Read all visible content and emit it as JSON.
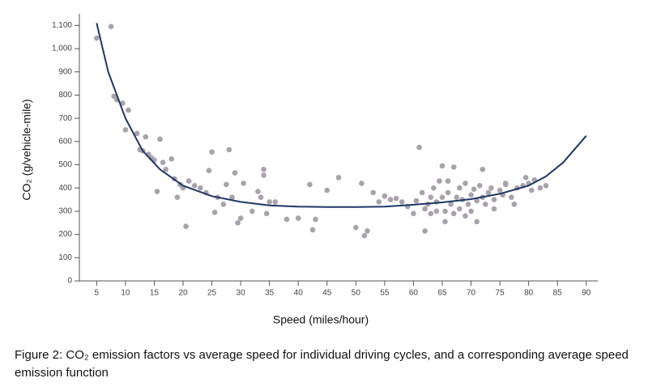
{
  "chart_data": {
    "type": "scatter",
    "y_label": "CO₂ (g/vehicle-mile)",
    "x_label": "Speed (miles/hour)",
    "caption": "Figure 2: CO₂ emission factors vs average speed for individual driving cycles, and a corresponding average speed emission function",
    "xlim": [
      2,
      92
    ],
    "ylim": [
      0,
      1150
    ],
    "xticks": [
      5,
      10,
      15,
      20,
      25,
      30,
      35,
      40,
      45,
      50,
      55,
      60,
      65,
      70,
      75,
      80,
      85,
      90
    ],
    "yticks": [
      0,
      100,
      200,
      300,
      400,
      500,
      600,
      700,
      800,
      900,
      {
        "value": 1000,
        "label": "1,000"
      },
      {
        "value": 1100,
        "label": "1,100"
      }
    ],
    "series": [
      {
        "type": "scatter",
        "color": "#a9a1ac",
        "x": [
          5,
          7.5,
          8,
          8.5,
          9.5,
          10,
          10.5,
          12,
          12.5,
          13,
          13.5,
          14,
          14.5,
          15,
          16,
          15.5,
          16.5,
          17,
          18,
          18.5,
          19,
          19.5,
          20,
          20.5,
          21,
          22,
          23,
          24,
          24.5,
          25,
          25.5,
          26,
          27,
          27.5,
          28,
          28.5,
          29,
          29.5,
          30,
          30.5,
          32,
          33,
          33.5,
          34,
          34,
          34.5,
          35,
          36,
          38,
          40,
          42,
          42.5,
          43,
          45,
          47,
          50,
          51,
          51.5,
          52,
          53,
          54,
          55,
          56,
          57,
          58,
          59,
          60,
          60.5,
          61,
          61.5,
          62,
          62,
          62.5,
          63,
          63,
          63.5,
          64,
          64,
          64.5,
          65,
          65,
          65.5,
          65.5,
          66,
          66,
          66.5,
          67,
          67,
          67.5,
          68,
          68,
          68.5,
          69,
          69,
          69.5,
          70,
          70,
          70.5,
          71,
          71,
          71.5,
          72,
          72,
          72.5,
          73,
          73.5,
          74,
          74,
          75,
          75.5,
          76,
          76,
          77,
          77.5,
          78,
          79,
          79.5,
          80,
          80.5,
          81,
          82,
          83
        ],
        "values": [
          1045,
          1095,
          795,
          780,
          765,
          650,
          735,
          635,
          565,
          560,
          620,
          545,
          530,
          520,
          610,
          385,
          510,
          480,
          525,
          440,
          360,
          415,
          400,
          235,
          430,
          410,
          400,
          380,
          475,
          555,
          295,
          360,
          330,
          415,
          565,
          360,
          465,
          250,
          270,
          420,
          300,
          385,
          360,
          480,
          455,
          290,
          340,
          340,
          265,
          270,
          415,
          220,
          265,
          390,
          445,
          230,
          420,
          195,
          215,
          380,
          340,
          365,
          350,
          355,
          340,
          320,
          290,
          345,
          575,
          380,
          215,
          310,
          330,
          360,
          290,
          400,
          300,
          340,
          430,
          495,
          360,
          255,
          300,
          380,
          430,
          330,
          490,
          290,
          360,
          310,
          400,
          350,
          420,
          280,
          330,
          370,
          300,
          395,
          345,
          255,
          410,
          480,
          360,
          330,
          380,
          400,
          350,
          310,
          390,
          370,
          415,
          420,
          360,
          330,
          400,
          410,
          445,
          420,
          390,
          435,
          400,
          410
        ]
      },
      {
        "type": "line",
        "color": "#1c3768",
        "x": [
          5,
          7,
          10,
          13,
          16,
          20,
          25,
          30,
          35,
          40,
          45,
          50,
          55,
          60,
          65,
          70,
          75,
          80,
          83,
          86,
          90
        ],
        "values": [
          1110,
          900,
          700,
          560,
          480,
          410,
          365,
          340,
          325,
          320,
          318,
          318,
          320,
          328,
          338,
          352,
          375,
          410,
          450,
          510,
          625
        ]
      }
    ]
  }
}
